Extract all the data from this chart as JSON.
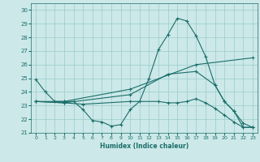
{
  "xlabel": "Humidex (Indice chaleur)",
  "bg_color": "#cce8e8",
  "line_color": "#1a6e6a",
  "grid_color": "#99cccc",
  "xlim": [
    -0.5,
    23.5
  ],
  "ylim": [
    21.0,
    30.5
  ],
  "yticks": [
    21,
    22,
    23,
    24,
    25,
    26,
    27,
    28,
    29,
    30
  ],
  "xticks": [
    0,
    1,
    2,
    3,
    4,
    5,
    6,
    7,
    8,
    9,
    10,
    11,
    12,
    13,
    14,
    15,
    16,
    17,
    18,
    19,
    20,
    21,
    22,
    23
  ],
  "lines": [
    {
      "x": [
        0,
        1,
        2,
        3,
        4,
        5,
        6,
        7,
        8,
        9,
        10,
        11,
        12,
        13,
        14,
        15,
        16,
        17,
        18,
        19,
        20,
        21,
        22,
        23
      ],
      "y": [
        24.9,
        24.0,
        23.3,
        23.3,
        23.3,
        22.7,
        21.9,
        21.8,
        21.5,
        21.6,
        22.7,
        23.3,
        25.0,
        27.1,
        28.2,
        29.4,
        29.2,
        28.1,
        26.6,
        24.5,
        23.3,
        22.6,
        21.4,
        21.4
      ]
    },
    {
      "x": [
        0,
        3,
        10,
        17,
        23
      ],
      "y": [
        23.3,
        23.3,
        24.2,
        26.0,
        26.5
      ]
    },
    {
      "x": [
        0,
        3,
        10,
        14,
        17,
        19,
        20,
        21,
        22,
        23
      ],
      "y": [
        23.3,
        23.2,
        23.8,
        25.3,
        25.5,
        24.5,
        23.3,
        22.6,
        21.7,
        21.4
      ]
    },
    {
      "x": [
        0,
        3,
        5,
        10,
        13,
        14,
        15,
        16,
        17,
        18,
        19,
        20,
        21,
        22,
        23
      ],
      "y": [
        23.3,
        23.2,
        23.1,
        23.3,
        23.3,
        23.2,
        23.2,
        23.3,
        23.5,
        23.2,
        22.8,
        22.3,
        21.8,
        21.4,
        21.4
      ]
    }
  ]
}
